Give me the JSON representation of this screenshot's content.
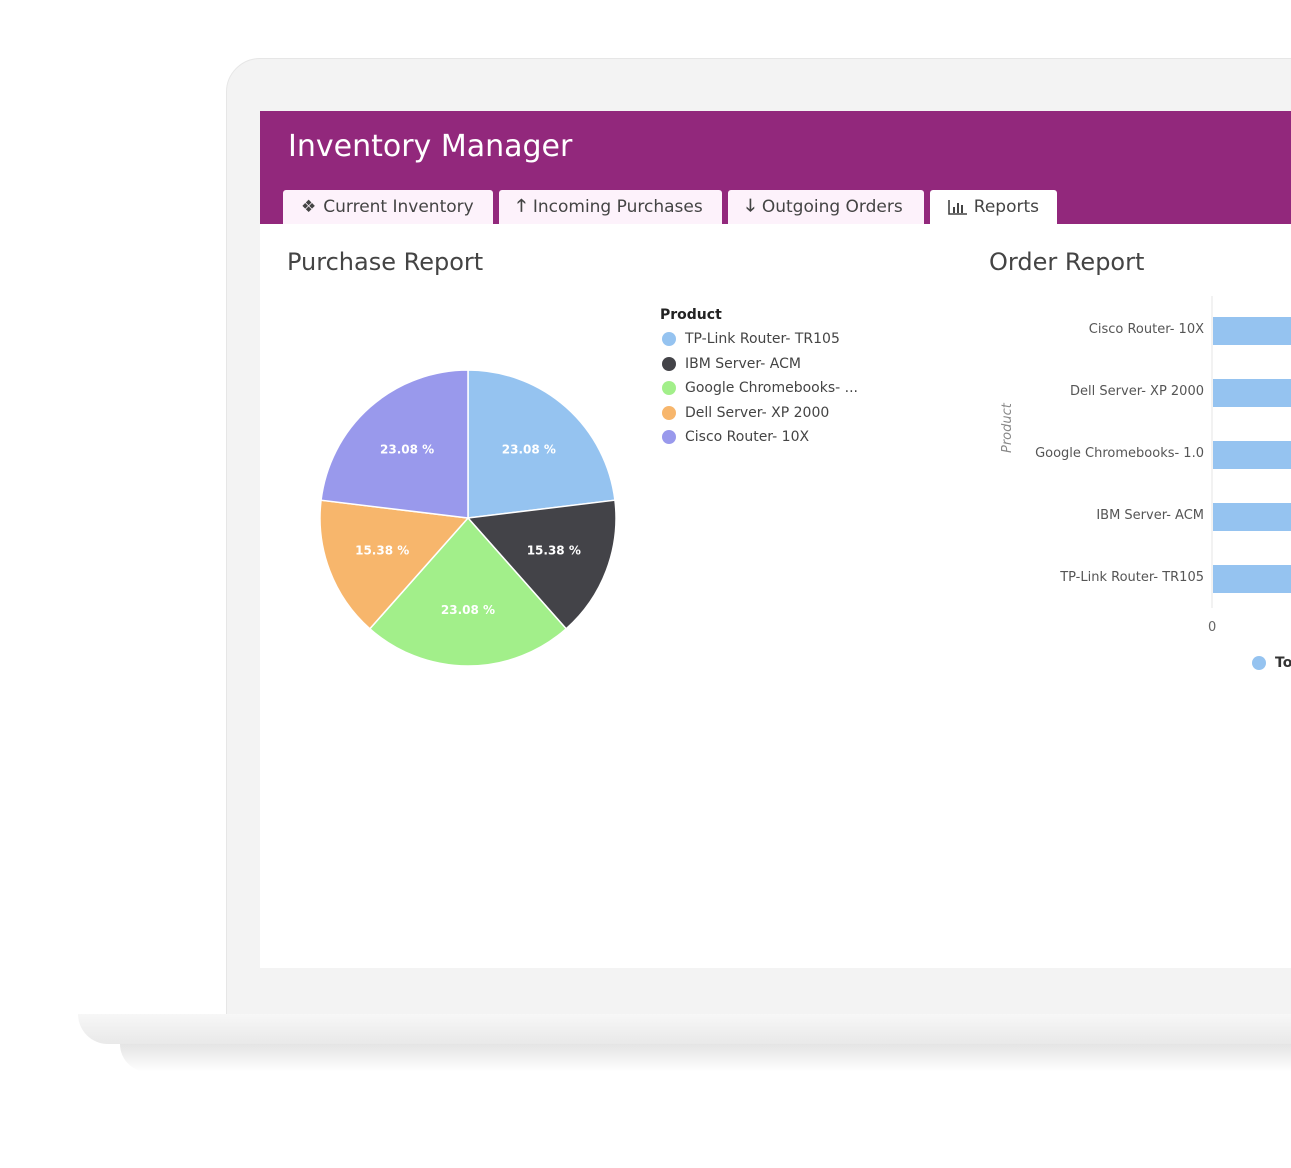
{
  "app": {
    "title": "Inventory Manager"
  },
  "tabs": [
    {
      "label": "Current Inventory",
      "icon": "cubes-icon"
    },
    {
      "label": "Incoming Purchases",
      "icon": "arrow-up-icon"
    },
    {
      "label": "Outgoing Orders",
      "icon": "arrow-down-icon"
    },
    {
      "label": "Reports",
      "icon": "bar-chart-icon",
      "active": true
    }
  ],
  "purchase_report": {
    "heading": "Purchase Report"
  },
  "order_report": {
    "heading": "Order Report"
  },
  "chart_data": [
    {
      "type": "pie",
      "legend_title": "Product",
      "legend_placement": "right",
      "labels": [
        "TP-Link Router- TR105",
        "IBM Server- ACM",
        "Google Chromebooks- ...",
        "Dell Server- XP 2000",
        "Cisco Router- 10X"
      ],
      "values": [
        23.08,
        15.38,
        23.08,
        15.38,
        23.08
      ],
      "data_labels": [
        "23.08 %",
        "15.38 %",
        "23.08 %",
        "15.38 %",
        "23.08 %"
      ],
      "colors": [
        "#95c3f0",
        "#434348",
        "#a2ef8a",
        "#f7b66c",
        "#9999ec"
      ]
    },
    {
      "type": "bar",
      "orientation": "horizontal",
      "ylabel": "Product",
      "categories": [
        "Cisco Router- 10X",
        "Dell Server- XP 2000",
        "Google Chromebooks- 1.0",
        "IBM Server- ACM",
        "TP-Link Router- TR105"
      ],
      "x_ticks": [
        "0"
      ],
      "legend": [
        "To"
      ],
      "legend_placement": "bottom",
      "color": "#95c3f0"
    }
  ]
}
